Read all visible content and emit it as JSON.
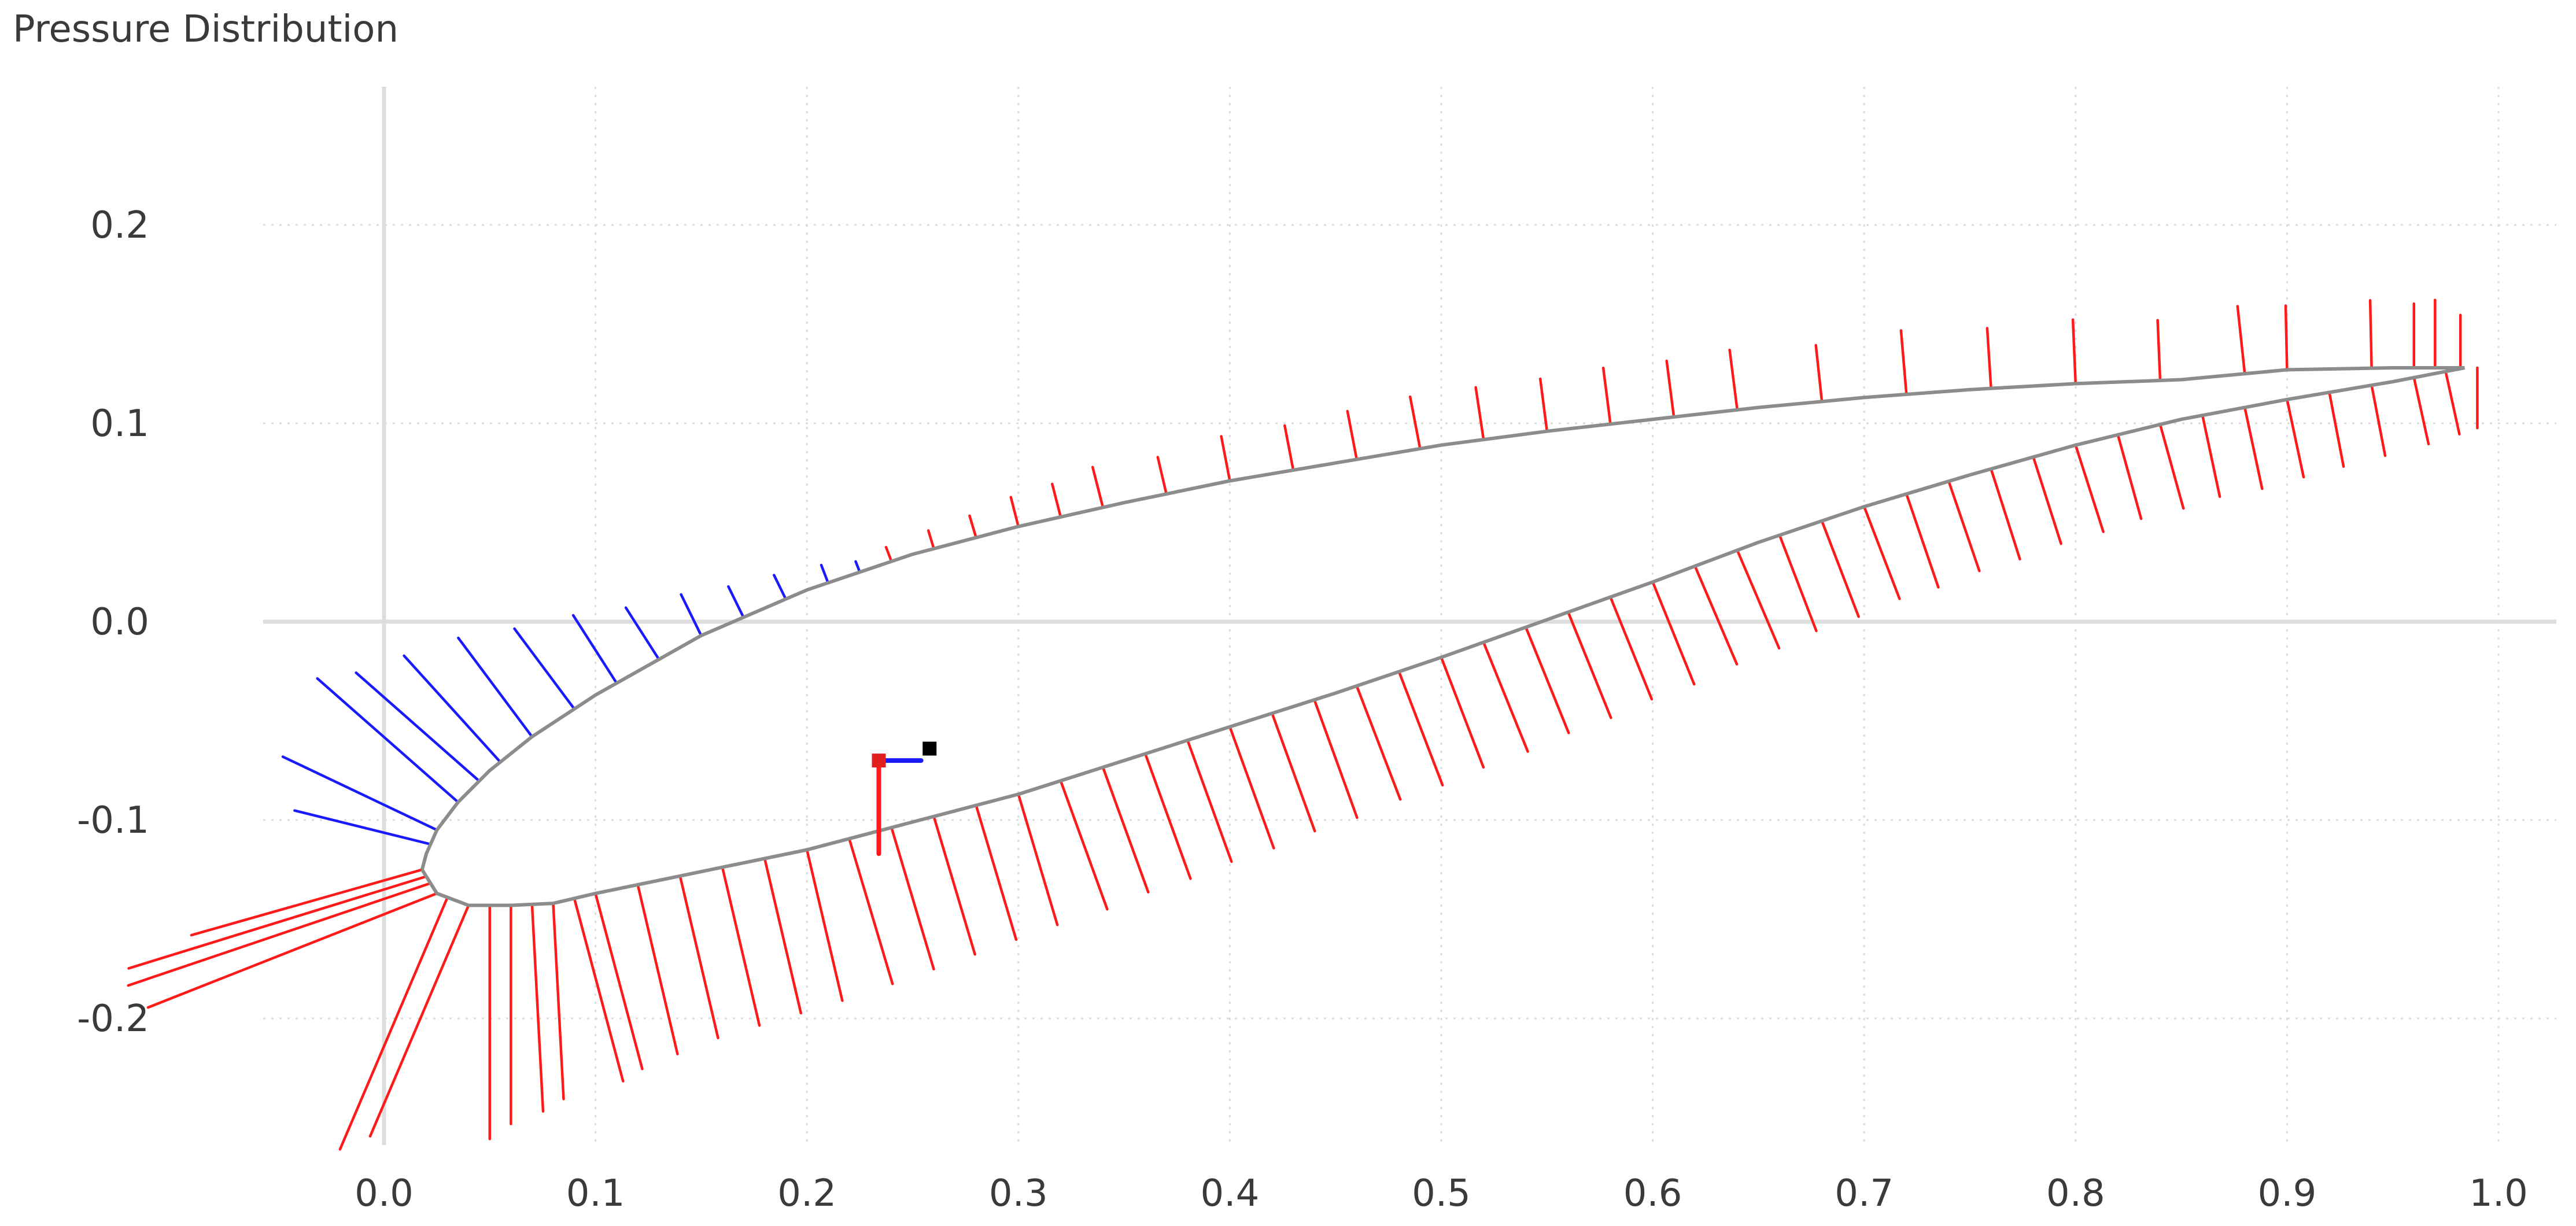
{
  "panel": {
    "title": "Pressure Distribution"
  },
  "colors": {
    "background": "#ffffff",
    "grid": "#dcdcdc",
    "axis": "#dddddd",
    "airfoil": "#8c8c8c",
    "positive_cp": "#ff1a1a",
    "negative_cp": "#1a1aff",
    "center_of_pressure": "#e02020",
    "reference_point": "#000000"
  },
  "chart_data": {
    "type": "line",
    "xlim": [
      -0.057,
      1.03
    ],
    "ylim": [
      -0.262,
      0.265
    ],
    "x_ticks": [
      "0.0",
      "0.1",
      "0.2",
      "0.3",
      "0.4",
      "0.5",
      "0.6",
      "0.7",
      "0.8",
      "0.9",
      "1.0"
    ],
    "y_ticks": [
      "-0.2",
      "-0.1",
      "0.0",
      "0.1",
      "0.2"
    ],
    "grid": true,
    "airfoil_upper": [
      [
        0.984,
        0.128
      ],
      [
        0.95,
        0.128
      ],
      [
        0.9,
        0.127
      ],
      [
        0.85,
        0.122
      ],
      [
        0.8,
        0.12
      ],
      [
        0.75,
        0.117
      ],
      [
        0.7,
        0.113
      ],
      [
        0.65,
        0.108
      ],
      [
        0.6,
        0.102
      ],
      [
        0.55,
        0.096
      ],
      [
        0.5,
        0.089
      ],
      [
        0.45,
        0.08
      ],
      [
        0.4,
        0.071
      ],
      [
        0.35,
        0.06
      ],
      [
        0.3,
        0.048
      ],
      [
        0.25,
        0.034
      ],
      [
        0.2,
        0.016
      ],
      [
        0.15,
        -0.007
      ],
      [
        0.1,
        -0.037
      ],
      [
        0.07,
        -0.058
      ],
      [
        0.05,
        -0.075
      ],
      [
        0.035,
        -0.091
      ],
      [
        0.025,
        -0.105
      ],
      [
        0.02,
        -0.117
      ],
      [
        0.018,
        -0.125
      ]
    ],
    "airfoil_lower": [
      [
        0.018,
        -0.125
      ],
      [
        0.025,
        -0.137
      ],
      [
        0.04,
        -0.143
      ],
      [
        0.06,
        -0.143
      ],
      [
        0.08,
        -0.142
      ],
      [
        0.1,
        -0.137
      ],
      [
        0.15,
        -0.126
      ],
      [
        0.2,
        -0.115
      ],
      [
        0.25,
        -0.101
      ],
      [
        0.3,
        -0.087
      ],
      [
        0.35,
        -0.07
      ],
      [
        0.4,
        -0.053
      ],
      [
        0.45,
        -0.036
      ],
      [
        0.5,
        -0.018
      ],
      [
        0.55,
        0.001
      ],
      [
        0.6,
        0.02
      ],
      [
        0.65,
        0.04
      ],
      [
        0.7,
        0.058
      ],
      [
        0.75,
        0.074
      ],
      [
        0.8,
        0.089
      ],
      [
        0.85,
        0.102
      ],
      [
        0.9,
        0.112
      ],
      [
        0.95,
        0.121
      ],
      [
        0.984,
        0.128
      ]
    ],
    "series": [
      {
        "name": "",
        "surface": "upper",
        "color": "#ff1a1a",
        "x": [
          0.982,
          0.97,
          0.96,
          0.94,
          0.9,
          0.88,
          0.84,
          0.8,
          0.76,
          0.72,
          0.68,
          0.64,
          0.61,
          0.58,
          0.55,
          0.52,
          0.49,
          0.46,
          0.43,
          0.4,
          0.37,
          0.34,
          0.32,
          0.3,
          0.28,
          0.26,
          0.24
        ],
        "cp": [
          0.14,
          0.18,
          0.17,
          0.18,
          0.17,
          0.18,
          0.16,
          0.17,
          0.16,
          0.17,
          0.15,
          0.16,
          0.15,
          0.15,
          0.14,
          0.14,
          0.14,
          0.13,
          0.12,
          0.12,
          0.1,
          0.11,
          0.09,
          0.08,
          0.06,
          0.05,
          0.04
        ]
      },
      {
        "name": "",
        "surface": "upper",
        "color": "#1a1aff",
        "x": [
          0.225,
          0.21,
          0.19,
          0.17,
          0.15,
          0.13,
          0.11,
          0.09,
          0.07,
          0.055,
          0.045,
          0.035,
          0.025,
          0.022
        ],
        "cp": [
          -0.03,
          -0.05,
          -0.07,
          -0.09,
          -0.12,
          -0.16,
          -0.21,
          -0.26,
          -0.32,
          -0.37,
          -0.42,
          -0.48,
          -0.43,
          -0.35
        ]
      },
      {
        "name": "",
        "surface": "lower",
        "color": "#ff1a1a",
        "x": [
          0.018,
          0.02,
          0.022,
          0.025,
          0.03,
          0.04,
          0.05,
          0.06,
          0.07,
          0.08,
          0.09,
          0.1,
          0.12,
          0.14,
          0.16,
          0.18,
          0.2,
          0.22,
          0.24,
          0.26,
          0.28,
          0.3,
          0.32,
          0.34,
          0.36,
          0.38,
          0.4,
          0.42,
          0.44,
          0.46,
          0.48,
          0.5,
          0.52,
          0.54,
          0.56,
          0.58,
          0.6,
          0.62,
          0.64,
          0.66,
          0.68,
          0.7,
          0.72,
          0.74,
          0.76,
          0.78,
          0.8,
          0.82,
          0.84,
          0.86,
          0.88,
          0.9,
          0.92,
          0.94,
          0.96,
          0.975,
          0.99
        ],
        "cp": [
          0.6,
          0.78,
          0.8,
          0.78,
          0.72,
          0.66,
          0.62,
          0.58,
          0.55,
          0.52,
          0.5,
          0.48,
          0.46,
          0.44,
          0.43,
          0.42,
          0.41,
          0.4,
          0.39,
          0.38,
          0.37,
          0.36,
          0.36,
          0.35,
          0.35,
          0.34,
          0.34,
          0.33,
          0.33,
          0.32,
          0.32,
          0.31,
          0.31,
          0.3,
          0.3,
          0.29,
          0.29,
          0.28,
          0.28,
          0.27,
          0.27,
          0.26,
          0.26,
          0.25,
          0.25,
          0.24,
          0.24,
          0.23,
          0.23,
          0.22,
          0.22,
          0.21,
          0.2,
          0.19,
          0.18,
          0.17,
          0.16
        ]
      }
    ],
    "center_of_pressure": {
      "x": 0.234,
      "y": -0.07
    },
    "reference_point": {
      "x": 0.258,
      "y": -0.064
    }
  }
}
